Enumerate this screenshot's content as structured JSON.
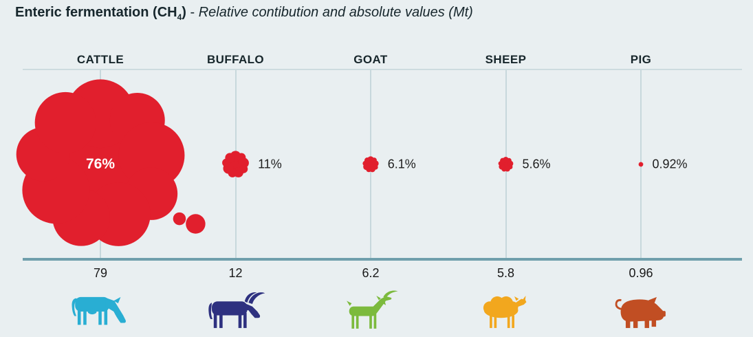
{
  "page": {
    "background": "#e9eff1"
  },
  "title": {
    "bold_prefix": "Enteric fermentation (CH",
    "subscript": "4",
    "bold_suffix": ")",
    "separator": " - ",
    "italic": "Relative contibution and absolute values (Mt)"
  },
  "chart_data": {
    "type": "bubble",
    "title": "Enteric fermentation (CH4) - Relative contibution and absolute values (Mt)",
    "categories": [
      "CATTLE",
      "BUFFALO",
      "GOAT",
      "SHEEP",
      "PIG"
    ],
    "series": [
      {
        "name": "relative_contribution_percent",
        "values": [
          76,
          11,
          6.1,
          5.6,
          0.92
        ],
        "labels": [
          "76%",
          "11%",
          "6.1%",
          "5.6%",
          "0.92%"
        ]
      },
      {
        "name": "absolute_value_mt",
        "values": [
          79,
          12,
          6.2,
          5.8,
          0.96
        ],
        "labels": [
          "79",
          "12",
          "6.2",
          "5.8",
          "0.96"
        ]
      }
    ],
    "legend_position": "none",
    "grid": "vertical-column-guides",
    "bubble_color": "#e11f2d",
    "bubble_label_inside_color": "#ffffff",
    "axis_line_color": "#6f9fac",
    "guide_line_color": "#c7d8dc",
    "animal_icons": [
      {
        "name": "cattle-icon",
        "color": "#29aed3"
      },
      {
        "name": "buffalo-icon",
        "color": "#2e3180"
      },
      {
        "name": "goat-icon",
        "color": "#7cba3d"
      },
      {
        "name": "sheep-icon",
        "color": "#f2a71e"
      },
      {
        "name": "pig-icon",
        "color": "#c14e23"
      }
    ]
  }
}
